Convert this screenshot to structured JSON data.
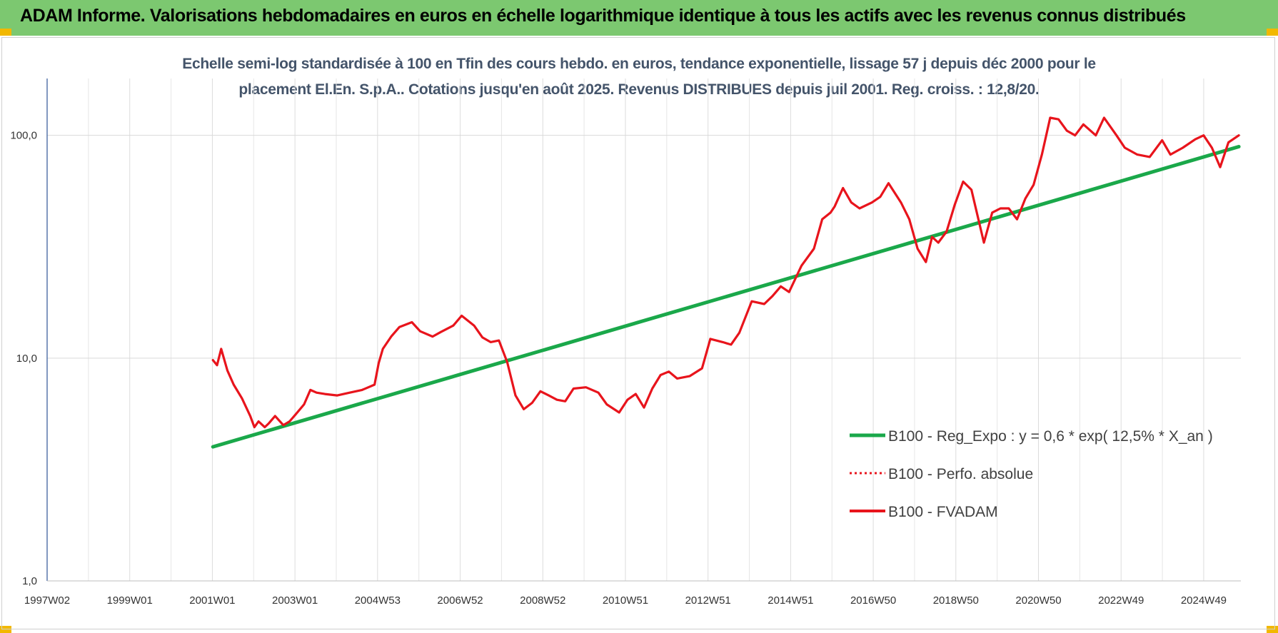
{
  "header": {
    "title": "ADAM Informe. Valorisations hebdomadaires en euros en échelle logarithmique identique à tous les actifs avec les revenus connus distribués"
  },
  "colors": {
    "banner": "#7cc870",
    "corner": "#f2b800",
    "trend": "#1aa84a",
    "price": "#e8141c",
    "subtitle": "#44546a"
  },
  "chart_data": {
    "type": "line",
    "title_lines": [
      "Echelle semi-log standardisée à 100 en Tfin des cours hebdo. en euros, tendance exponentielle, lissage 57 j depuis déc 2000 pour le",
      "placement El.En. S.p.A.. Cotations jusqu'en août 2025. Revenus DISTRIBUES depuis juil 2001. Reg. croiss. : 12,8/20."
    ],
    "y_scale": "log",
    "ylim": [
      1,
      180
    ],
    "y_ticks": [
      "1,0",
      "10,0",
      "100,0"
    ],
    "x_ticks": [
      "1997W02",
      "1999W01",
      "2001W01",
      "2003W01",
      "2004W53",
      "2006W52",
      "2008W52",
      "2010W51",
      "2012W51",
      "2014W51",
      "2016W50",
      "2018W50",
      "2020W50",
      "2022W49",
      "2024W49"
    ],
    "xlim": [
      1997.0,
      2025.8
    ],
    "grid": true,
    "legend_position": "right",
    "series": [
      {
        "name": "B100 - Reg_Expo : y = 0,6 * exp( 12,5% *  X_an )",
        "style": "solid-thick",
        "color": "#1aa84a",
        "x": [
          2001.0,
          2025.75
        ],
        "y": [
          4.0,
          89.0
        ]
      },
      {
        "name": "B100 - Perfo. absolue",
        "style": "dotted",
        "color": "#e8141c",
        "x": [],
        "y": []
      },
      {
        "name": "B100 - FVADAM",
        "style": "solid",
        "color": "#e8141c",
        "x": [
          2001.0,
          2001.1,
          2001.2,
          2001.35,
          2001.5,
          2001.7,
          2001.9,
          2002.0,
          2002.1,
          2002.25,
          2002.35,
          2002.5,
          2002.7,
          2002.85,
          2003.0,
          2003.2,
          2003.35,
          2003.5,
          2003.7,
          2004.0,
          2004.3,
          2004.6,
          2004.9,
          2005.0,
          2005.1,
          2005.3,
          2005.5,
          2005.8,
          2006.0,
          2006.3,
          2006.5,
          2006.8,
          2007.0,
          2007.3,
          2007.5,
          2007.7,
          2007.9,
          2008.1,
          2008.3,
          2008.5,
          2008.7,
          2008.9,
          2009.1,
          2009.3,
          2009.5,
          2009.7,
          2010.0,
          2010.3,
          2010.5,
          2010.8,
          2011.0,
          2011.2,
          2011.4,
          2011.6,
          2011.8,
          2012.0,
          2012.2,
          2012.5,
          2012.8,
          2013.0,
          2013.3,
          2013.5,
          2013.7,
          2014.0,
          2014.3,
          2014.5,
          2014.7,
          2014.9,
          2015.2,
          2015.5,
          2015.7,
          2015.9,
          2016.0,
          2016.2,
          2016.4,
          2016.6,
          2016.9,
          2017.1,
          2017.3,
          2017.6,
          2017.8,
          2018.0,
          2018.2,
          2018.35,
          2018.5,
          2018.7,
          2018.9,
          2019.1,
          2019.3,
          2019.6,
          2019.8,
          2020.0,
          2020.2,
          2020.4,
          2020.6,
          2020.8,
          2021.0,
          2021.2,
          2021.4,
          2021.6,
          2021.8,
          2022.0,
          2022.3,
          2022.5,
          2022.8,
          2023.0,
          2023.3,
          2023.6,
          2023.9,
          2024.1,
          2024.4,
          2024.7,
          2024.9,
          2025.1,
          2025.3,
          2025.5,
          2025.75
        ],
        "y": [
          9.8,
          9.3,
          11.0,
          8.8,
          7.6,
          6.6,
          5.5,
          4.9,
          5.2,
          4.9,
          5.1,
          5.5,
          5.0,
          5.2,
          5.6,
          6.2,
          7.2,
          7.0,
          6.9,
          6.8,
          7.0,
          7.2,
          7.6,
          9.5,
          11.0,
          12.5,
          13.8,
          14.5,
          13.2,
          12.5,
          13.1,
          14.0,
          15.5,
          14.0,
          12.4,
          11.8,
          12.0,
          9.6,
          6.8,
          5.9,
          6.3,
          7.1,
          6.8,
          6.5,
          6.4,
          7.3,
          7.4,
          7.0,
          6.2,
          5.7,
          6.5,
          6.9,
          6.0,
          7.3,
          8.4,
          8.7,
          8.1,
          8.3,
          9.0,
          12.2,
          11.8,
          11.5,
          13.0,
          18.0,
          17.5,
          19.0,
          21.0,
          19.8,
          26.0,
          31.0,
          42.0,
          45.0,
          48.0,
          58.0,
          50.0,
          47.0,
          50.0,
          53.0,
          61.0,
          50.0,
          42.0,
          31.0,
          27.0,
          35.0,
          33.0,
          37.0,
          49.0,
          62.0,
          57.0,
          33.0,
          45.0,
          47.0,
          47.0,
          42.0,
          52.0,
          60.0,
          82.0,
          120.0,
          118.0,
          105.0,
          100.0,
          112.0,
          100.0,
          120.0,
          100.0,
          88.0,
          82.0,
          80.0,
          95.0,
          82.0,
          88.0,
          96.0,
          100.0,
          88.0,
          72.0,
          93.0,
          100.0
        ]
      }
    ]
  }
}
